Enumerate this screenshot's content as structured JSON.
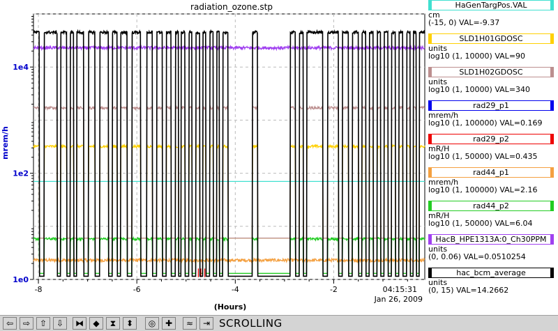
{
  "chart_data": {
    "type": "line",
    "title": "radiation_ozone.stp",
    "xlabel": "(Hours)",
    "ylabel": "mrem/h",
    "y_scale": "log",
    "xlim": [
      -8.1,
      -0.15
    ],
    "ylim": [
      1,
      100000
    ],
    "x_ticks": [
      -8,
      -6,
      -4,
      -2
    ],
    "x_tick_labels": [
      "-8",
      "-6",
      "-4",
      "-2"
    ],
    "y_ticks": [
      1,
      100,
      10000
    ],
    "y_tick_labels": [
      "1e0",
      "1e2",
      "1e4"
    ],
    "time_label": "04:15:31",
    "date_label": "Jan 26, 2009",
    "grid": true,
    "legend_position": "right",
    "series": [
      {
        "name": "HaGenTargPos.VAL",
        "color": "#40e0d0",
        "unit": "cm",
        "range": "(-15, 0)",
        "value": "-9.37",
        "pattern": "flat",
        "level": 70
      },
      {
        "name": "SLD1H01GDOSC",
        "color": "#ffd000",
        "unit": "units",
        "range": "log10 (1, 10000)",
        "value": "90",
        "pattern": "switching",
        "level": 320,
        "low": 6
      },
      {
        "name": "SLD1H02GDOSC",
        "color": "#bc8f8f",
        "unit": "units",
        "range": "log10 (1, 10000)",
        "value": "340",
        "pattern": "switching",
        "level": 1700,
        "low": 6
      },
      {
        "name": "rad29_p1",
        "color": "#0000ee",
        "unit": "mrem/h",
        "range": "log10 (1, 100000)",
        "value": "0.169",
        "pattern": "none"
      },
      {
        "name": "rad29_p2",
        "color": "#ee0000",
        "unit": "mR/H",
        "range": "log10 (1, 50000)",
        "value": "0.435",
        "pattern": "blips"
      },
      {
        "name": "rad44_p1",
        "color": "#f4a040",
        "unit": "mrem/h",
        "range": "log10 (1, 100000)",
        "value": "2.16",
        "pattern": "noisy",
        "level": 2.3
      },
      {
        "name": "rad44_p2",
        "color": "#22cc22",
        "unit": "mR/H",
        "range": "log10 (1, 50000)",
        "value": "6.04",
        "pattern": "switching",
        "level": 5.8,
        "low": 1.3
      },
      {
        "name": "HacB_HPE1313A:0_Ch30PPM",
        "color": "#a040f0",
        "unit": "units",
        "range": "(0, 0.06)",
        "value": "0.0510254",
        "pattern": "noisy",
        "level": 23000
      },
      {
        "name": "hac_bcm_average",
        "color": "#000000",
        "unit": "units",
        "range": "(0, 15)",
        "value": "14.2662",
        "pattern": "switching",
        "level": 45000,
        "low": 1.15
      }
    ],
    "beam_gaps": [
      [
        -7.98,
        -7.88
      ],
      [
        -7.62,
        -7.55
      ],
      [
        -7.42,
        -7.35
      ],
      [
        -7.28,
        -7.22
      ],
      [
        -7.08,
        -6.98
      ],
      [
        -6.85,
        -6.75
      ],
      [
        -6.58,
        -6.5
      ],
      [
        -6.4,
        -6.33
      ],
      [
        -6.2,
        -6.1
      ],
      [
        -5.92,
        -5.8
      ],
      [
        -5.68,
        -5.6
      ],
      [
        -5.48,
        -5.4
      ],
      [
        -5.3,
        -5.22
      ],
      [
        -5.15,
        -5.1
      ],
      [
        -5.02,
        -4.94
      ],
      [
        -4.88,
        -4.8
      ],
      [
        -4.72,
        -4.66
      ],
      [
        -4.6,
        -4.52
      ],
      [
        -4.45,
        -4.38
      ],
      [
        -4.32,
        -4.25
      ],
      [
        -4.15,
        -3.65
      ],
      [
        -3.55,
        -2.88
      ],
      [
        -2.78,
        -2.7
      ],
      [
        -2.62,
        -2.55
      ],
      [
        -2.22,
        -2.12
      ],
      [
        -1.9,
        -1.82
      ],
      [
        -1.7,
        -1.62
      ],
      [
        -1.5,
        -1.43
      ],
      [
        -1.35,
        -1.28
      ],
      [
        -1.2,
        -1.12
      ],
      [
        -1.05,
        -0.98
      ],
      [
        -0.9,
        -0.83
      ],
      [
        -0.75,
        -0.68
      ],
      [
        -0.6,
        -0.52
      ],
      [
        -0.45,
        -0.38
      ],
      [
        -0.32,
        -0.26
      ]
    ]
  },
  "toolbar": {
    "status": "SCROLLING",
    "buttons": [
      {
        "name": "scroll-left-button",
        "glyph": "⇦"
      },
      {
        "name": "scroll-right-button",
        "glyph": "⇨"
      },
      {
        "name": "scroll-up-button",
        "glyph": "⇧"
      },
      {
        "name": "scroll-down-button",
        "glyph": "⇩"
      },
      {
        "name": "expand-horizontal-button",
        "glyph": "⧓"
      },
      {
        "name": "compress-horizontal-button",
        "glyph": "◆"
      },
      {
        "name": "expand-vertical-button",
        "glyph": "⧗"
      },
      {
        "name": "compress-vertical-button",
        "glyph": "⬍"
      },
      {
        "name": "zoom-out-button",
        "glyph": "◎"
      },
      {
        "name": "zoom-in-button",
        "glyph": "✚"
      },
      {
        "name": "autoscale-button",
        "glyph": "≈"
      },
      {
        "name": "scroll-to-end-button",
        "glyph": "⇥"
      }
    ]
  }
}
